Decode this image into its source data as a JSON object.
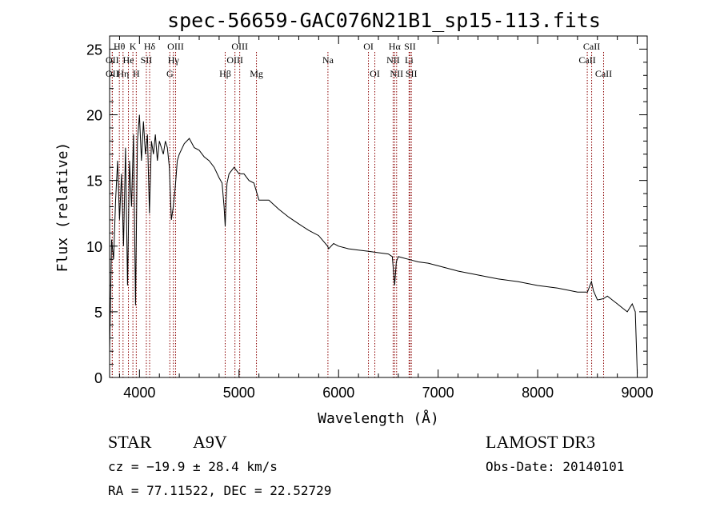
{
  "chart_data": {
    "type": "line",
    "title": "spec-56659-GAC076N21B1_sp15-113.fits",
    "xlabel": "Wavelength (Å)",
    "ylabel": "Flux (relative)",
    "xlim": [
      3700,
      9100
    ],
    "ylim": [
      0,
      26
    ],
    "xticks": [
      4000,
      5000,
      6000,
      7000,
      8000,
      9000
    ],
    "yticks": [
      0,
      5,
      10,
      15,
      20,
      25
    ],
    "grid": false,
    "series": [
      {
        "name": "flux",
        "x": [
          3700,
          3720,
          3740,
          3760,
          3780,
          3800,
          3820,
          3840,
          3860,
          3880,
          3900,
          3920,
          3940,
          3960,
          3980,
          4000,
          4020,
          4040,
          4060,
          4080,
          4100,
          4120,
          4140,
          4160,
          4180,
          4200,
          4220,
          4240,
          4260,
          4280,
          4300,
          4320,
          4340,
          4360,
          4380,
          4400,
          4450,
          4500,
          4550,
          4600,
          4650,
          4700,
          4750,
          4800,
          4830,
          4850,
          4861,
          4870,
          4880,
          4900,
          4950,
          5000,
          5050,
          5100,
          5150,
          5200,
          5300,
          5400,
          5500,
          5600,
          5700,
          5800,
          5890,
          5900,
          5950,
          6000,
          6100,
          6200,
          6300,
          6400,
          6500,
          6540,
          6563,
          6580,
          6600,
          6700,
          6800,
          6900,
          7000,
          7200,
          7400,
          7600,
          7800,
          8000,
          8200,
          8400,
          8500,
          8540,
          8560,
          8600,
          8660,
          8700,
          8750,
          8800,
          8850,
          8900,
          8950,
          8980,
          9000
        ],
        "y": [
          2.0,
          10.5,
          9.0,
          13.5,
          16.5,
          12.0,
          15.5,
          10.0,
          17.5,
          7.0,
          16.5,
          13.0,
          18.5,
          5.5,
          18.0,
          20.0,
          16.5,
          19.5,
          17.0,
          18.5,
          12.5,
          18.0,
          17.0,
          18.5,
          16.5,
          18.0,
          17.5,
          17.0,
          18.0,
          17.5,
          16.0,
          12.0,
          13.0,
          14.5,
          16.5,
          17.0,
          17.8,
          18.2,
          17.5,
          17.3,
          16.8,
          16.5,
          16.0,
          15.2,
          14.8,
          13.0,
          11.5,
          13.5,
          14.8,
          15.5,
          16.0,
          15.5,
          15.5,
          15.0,
          14.8,
          13.5,
          13.5,
          12.8,
          12.2,
          11.7,
          11.2,
          10.8,
          10.0,
          9.8,
          10.2,
          10.0,
          9.8,
          9.7,
          9.6,
          9.5,
          9.4,
          9.2,
          7.0,
          8.8,
          9.2,
          9.0,
          8.8,
          8.7,
          8.5,
          8.1,
          7.8,
          7.5,
          7.3,
          7.0,
          6.8,
          6.5,
          6.5,
          7.3,
          6.6,
          5.9,
          6.0,
          6.2,
          5.9,
          5.6,
          5.3,
          5.0,
          5.6,
          5.0,
          0.3
        ]
      }
    ],
    "lines": [
      {
        "name": "Hθ",
        "x": 3798,
        "row": 1
      },
      {
        "name": "OII",
        "x": 3727,
        "row": 2
      },
      {
        "name": "OII",
        "x": 3727,
        "row": 3
      },
      {
        "name": "He",
        "x": 3889,
        "row": 2
      },
      {
        "name": "Hη",
        "x": 3835,
        "row": 3
      },
      {
        "name": "K",
        "x": 3934,
        "row": 1
      },
      {
        "name": "H",
        "x": 3968,
        "row": 3
      },
      {
        "name": "SII",
        "x": 4069,
        "row": 2
      },
      {
        "name": "Hδ",
        "x": 4102,
        "row": 1
      },
      {
        "name": "OIII",
        "x": 4363,
        "row": 1
      },
      {
        "name": "Hγ",
        "x": 4341,
        "row": 2
      },
      {
        "name": "G",
        "x": 4305,
        "row": 3
      },
      {
        "name": "Hβ",
        "x": 4861,
        "row": 3
      },
      {
        "name": "OIII",
        "x": 5007,
        "row": 1
      },
      {
        "name": "OIII",
        "x": 4959,
        "row": 2
      },
      {
        "name": "Mg",
        "x": 5175,
        "row": 3
      },
      {
        "name": "Na",
        "x": 5893,
        "row": 2
      },
      {
        "name": "OI",
        "x": 6300,
        "row": 1
      },
      {
        "name": "OI",
        "x": 6364,
        "row": 3
      },
      {
        "name": "Hα",
        "x": 6563,
        "row": 1
      },
      {
        "name": "NII",
        "x": 6548,
        "row": 2
      },
      {
        "name": "NII",
        "x": 6583,
        "row": 3
      },
      {
        "name": "SII",
        "x": 6717,
        "row": 1
      },
      {
        "name": "Li",
        "x": 6708,
        "row": 2
      },
      {
        "name": "SII",
        "x": 6731,
        "row": 3
      },
      {
        "name": "CaII",
        "x": 8542,
        "row": 1
      },
      {
        "name": "CaII",
        "x": 8498,
        "row": 2
      },
      {
        "name": "CaII",
        "x": 8662,
        "row": 3
      }
    ]
  },
  "info": {
    "object_class": "STAR",
    "subclass": "A9V",
    "survey": "LAMOST DR3",
    "cz": "cz = −19.9 ± 28.4 km/s",
    "obs_date": "Obs-Date: 20140101",
    "radec": "RA =  77.11522, DEC =  22.52729"
  },
  "colors": {
    "line_marker": "#8b0000",
    "spectrum": "#000000",
    "axis": "#000000"
  }
}
